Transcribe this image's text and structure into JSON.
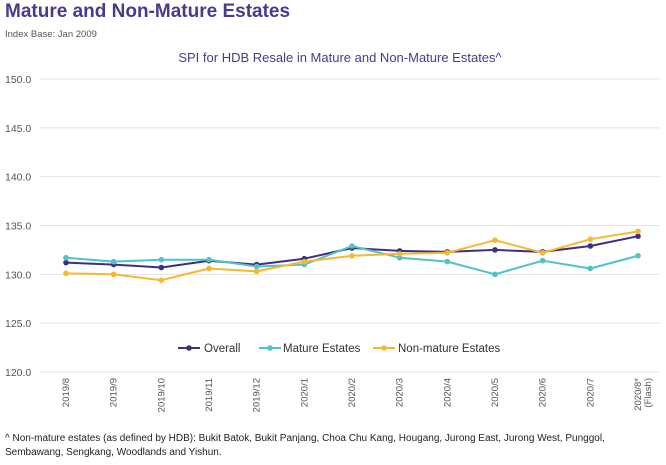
{
  "header": {
    "title": "Mature and Non-Mature Estates",
    "index_base": "Index Base: Jan 2009"
  },
  "chart_data": {
    "type": "line",
    "title": "SPI for HDB Resale in Mature and Non-Mature Estates^",
    "xlabel": "",
    "ylabel": "",
    "categories": [
      "2019/8",
      "2019/9",
      "2019/10",
      "2019/11",
      "2019/12",
      "2020/1",
      "2020/2",
      "2020/3",
      "2020/4",
      "2020/5",
      "2020/6",
      "2020/7",
      "2020/8*"
    ],
    "category_notes": [
      "",
      "",
      "",
      "",
      "",
      "",
      "",
      "",
      "",
      "",
      "",
      "",
      "(Flash)"
    ],
    "ylim": [
      120,
      150
    ],
    "yticks": [
      "120.0",
      "125.0",
      "130.0",
      "135.0",
      "140.0",
      "145.0",
      "150.0"
    ],
    "legend_position": "bottom",
    "grid": true,
    "series": [
      {
        "name": "Overall",
        "color": "#3f2f7f",
        "values": [
          131.2,
          131.0,
          130.7,
          131.4,
          131.0,
          131.6,
          132.7,
          132.4,
          132.3,
          132.5,
          132.3,
          132.9,
          133.9
        ]
      },
      {
        "name": "Mature Estates",
        "color": "#4fc3c7",
        "values": [
          131.7,
          131.3,
          131.5,
          131.5,
          130.8,
          131.0,
          132.9,
          131.7,
          131.3,
          130.0,
          131.4,
          130.6,
          131.9
        ]
      },
      {
        "name": "Non-mature Estates",
        "color": "#f5b82e",
        "values": [
          130.1,
          130.0,
          129.4,
          130.6,
          130.3,
          131.3,
          131.9,
          132.1,
          132.2,
          133.5,
          132.2,
          133.6,
          134.4
        ]
      }
    ]
  },
  "footnote": "^ Non-mature estates (as defined by HDB): Bukit Batok, Bukit Panjang, Choa Chu Kang, Hougang, Jurong East, Jurong West, Punggol, Sembawang, Sengkang, Woodlands and Yishun."
}
